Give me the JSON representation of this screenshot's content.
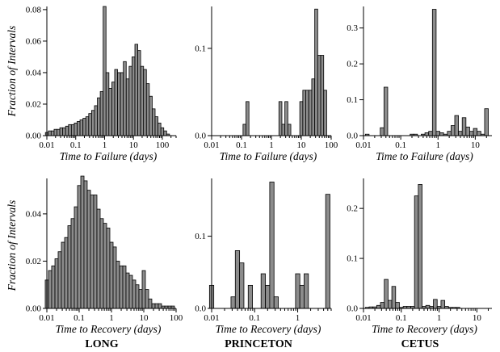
{
  "figure": {
    "ylabel": "Fraction of Intervals",
    "column_titles": [
      "LONG",
      "PRINCETON",
      "CETUS"
    ]
  },
  "chart_data": [
    {
      "type": "bar",
      "row": 0,
      "col": 0,
      "xscale": "log",
      "xlabel": "Time to Failure (days)",
      "xlim": [
        0.01,
        300
      ],
      "ylim": [
        0,
        0.082
      ],
      "xticks": [
        0.01,
        0.1,
        1,
        10,
        100
      ],
      "xtick_labels": [
        "0.01",
        "0.1",
        "1",
        "10",
        "100"
      ],
      "yticks": [
        0,
        0.02,
        0.04,
        0.06,
        0.08
      ],
      "ytick_labels": [
        "0.00",
        "0.02",
        "0.04",
        "0.06",
        "0.08"
      ],
      "bin_width_log10": 0.1,
      "x": [
        0.01,
        0.0126,
        0.0158,
        0.02,
        0.0251,
        0.0316,
        0.0398,
        0.0501,
        0.0631,
        0.0794,
        0.1,
        0.126,
        0.158,
        0.2,
        0.251,
        0.316,
        0.398,
        0.501,
        0.631,
        0.794,
        1,
        1.26,
        1.58,
        2,
        2.51,
        3.16,
        3.98,
        5.01,
        6.31,
        7.94,
        10,
        12.6,
        15.8,
        20,
        25.1,
        31.6,
        39.8,
        50.1,
        63.1,
        79.4,
        100,
        126,
        158
      ],
      "values": [
        0.002,
        0.003,
        0.003,
        0.004,
        0.004,
        0.005,
        0.005,
        0.006,
        0.007,
        0.007,
        0.008,
        0.009,
        0.01,
        0.011,
        0.012,
        0.014,
        0.016,
        0.019,
        0.024,
        0.028,
        0.082,
        0.04,
        0.03,
        0.034,
        0.042,
        0.04,
        0.04,
        0.047,
        0.036,
        0.044,
        0.05,
        0.058,
        0.054,
        0.044,
        0.042,
        0.033,
        0.025,
        0.017,
        0.012,
        0.008,
        0.005,
        0.003,
        0.001
      ]
    },
    {
      "type": "bar",
      "row": 0,
      "col": 1,
      "xscale": "log",
      "xlabel": "Time to Failure (days)",
      "xlim": [
        0.01,
        100
      ],
      "ylim": [
        0,
        0.148
      ],
      "xticks": [
        0.01,
        0.1,
        1,
        10,
        100
      ],
      "xtick_labels": [
        "0.01",
        "0.1",
        "1",
        "10",
        "100"
      ],
      "yticks": [
        0,
        0.1
      ],
      "ytick_labels": [
        "0.0",
        "0.1"
      ],
      "bin_width_log10": 0.1,
      "x": [
        0.126,
        0.158,
        2,
        2.51,
        3.16,
        3.98,
        10,
        12.6,
        15.8,
        20,
        25.1,
        31.6,
        39.8,
        50.1,
        63.1
      ],
      "values": [
        0.013,
        0.039,
        0.039,
        0.013,
        0.039,
        0.013,
        0.039,
        0.052,
        0.052,
        0.052,
        0.065,
        0.145,
        0.092,
        0.092,
        0.052
      ]
    },
    {
      "type": "bar",
      "row": 0,
      "col": 2,
      "xscale": "log",
      "xlabel": "Time to Failure (days)",
      "xlim": [
        0.01,
        28
      ],
      "ylim": [
        0,
        0.36
      ],
      "xticks": [
        0.01,
        0.1,
        1,
        10
      ],
      "xtick_labels": [
        "0.01",
        "0.1",
        "1",
        "10"
      ],
      "yticks": [
        0,
        0.1,
        0.2,
        0.3
      ],
      "ytick_labels": [
        "0.0",
        "0.1",
        "0.2",
        "0.3"
      ],
      "bin_width_log10": 0.1,
      "x": [
        0.0126,
        0.0316,
        0.0398,
        0.2,
        0.251,
        0.398,
        0.501,
        0.631,
        0.794,
        1,
        1.26,
        1.58,
        2,
        2.51,
        3.16,
        3.98,
        5.01,
        6.31,
        7.94,
        10,
        12.6,
        15.8,
        20
      ],
      "values": [
        0.004,
        0.022,
        0.135,
        0.004,
        0.004,
        0.004,
        0.008,
        0.012,
        0.352,
        0.012,
        0.008,
        0.004,
        0.012,
        0.028,
        0.056,
        0.012,
        0.05,
        0.024,
        0.012,
        0.02,
        0.012,
        0.004,
        0.075
      ]
    },
    {
      "type": "bar",
      "row": 1,
      "col": 0,
      "xscale": "log",
      "xlabel": "Time to Recovery (days)",
      "xlim": [
        0.01,
        100
      ],
      "ylim": [
        0,
        0.055
      ],
      "xticks": [
        0.01,
        0.1,
        1,
        10,
        100
      ],
      "xtick_labels": [
        "0.01",
        "0.1",
        "1",
        "10",
        "100"
      ],
      "yticks": [
        0,
        0.02,
        0.04
      ],
      "ytick_labels": [
        "0.00",
        "0.02",
        "0.04"
      ],
      "bin_width_log10": 0.1,
      "x": [
        0.01,
        0.0126,
        0.0158,
        0.02,
        0.0251,
        0.0316,
        0.0398,
        0.0501,
        0.0631,
        0.0794,
        0.1,
        0.126,
        0.158,
        0.2,
        0.251,
        0.316,
        0.398,
        0.501,
        0.631,
        0.794,
        1,
        1.26,
        1.58,
        2,
        2.51,
        3.16,
        3.98,
        5.01,
        6.31,
        7.94,
        10,
        12.6,
        15.8,
        20,
        25.1,
        31.6,
        39.8,
        50.1,
        63.1,
        79.4
      ],
      "values": [
        0.012,
        0.016,
        0.018,
        0.021,
        0.024,
        0.028,
        0.03,
        0.035,
        0.038,
        0.043,
        0.052,
        0.056,
        0.054,
        0.05,
        0.048,
        0.048,
        0.042,
        0.038,
        0.036,
        0.034,
        0.028,
        0.026,
        0.02,
        0.018,
        0.018,
        0.015,
        0.014,
        0.012,
        0.01,
        0.008,
        0.016,
        0.008,
        0.004,
        0.002,
        0.002,
        0.002,
        0.001,
        0.001,
        0.001,
        0.001
      ]
    },
    {
      "type": "bar",
      "row": 1,
      "col": 1,
      "xscale": "log",
      "xlabel": "Time to Recovery (days)",
      "xlim": [
        0.01,
        6
      ],
      "ylim": [
        0,
        0.18
      ],
      "xticks": [
        0.01,
        0.1,
        1
      ],
      "xtick_labels": [
        "0.01",
        "0.1",
        "1"
      ],
      "yticks": [
        0,
        0.1
      ],
      "ytick_labels": [
        "0.0",
        "0.1"
      ],
      "bin_width_log10": 0.1,
      "x": [
        0.01,
        0.0316,
        0.0398,
        0.0501,
        0.0794,
        0.158,
        0.2,
        0.251,
        0.316,
        1,
        1.26,
        1.58,
        5.01
      ],
      "values": [
        0.032,
        0.016,
        0.08,
        0.063,
        0.032,
        0.048,
        0.032,
        0.175,
        0.016,
        0.048,
        0.032,
        0.048,
        0.158
      ]
    },
    {
      "type": "bar",
      "row": 1,
      "col": 2,
      "xscale": "log",
      "xlabel": "Time to Recovery (days)",
      "xlim": [
        0.01,
        25
      ],
      "ylim": [
        0,
        0.26
      ],
      "xticks": [
        0.01,
        0.1,
        1,
        10
      ],
      "xtick_labels": [
        "0.01",
        "0.1",
        "1",
        "10"
      ],
      "yticks": [
        0,
        0.1,
        0.2
      ],
      "ytick_labels": [
        "0.0",
        "0.1",
        "0.2"
      ],
      "bin_width_log10": 0.1,
      "x": [
        0.0126,
        0.0158,
        0.02,
        0.0251,
        0.0316,
        0.0398,
        0.0501,
        0.0631,
        0.0794,
        0.1,
        0.126,
        0.158,
        0.2,
        0.251,
        0.316,
        0.398,
        0.501,
        0.631,
        0.794,
        1,
        1.26,
        1.58,
        2,
        2.51,
        3.16
      ],
      "values": [
        0.002,
        0.003,
        0.003,
        0.006,
        0.012,
        0.058,
        0.016,
        0.044,
        0.012,
        0.002,
        0.004,
        0.004,
        0.004,
        0.225,
        0.248,
        0.004,
        0.006,
        0.004,
        0.018,
        0.004,
        0.016,
        0.004,
        0.002,
        0.002,
        0.002
      ]
    }
  ]
}
